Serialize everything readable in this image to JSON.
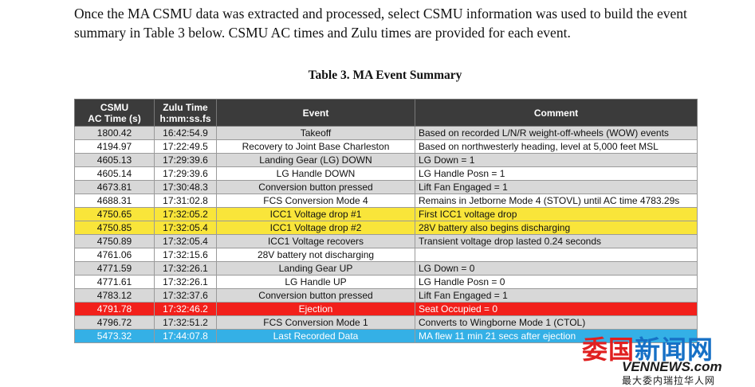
{
  "intro_text": "Once the MA CSMU data was extracted and processed, select CSMU information was used to build the event summary in Table 3 below. CSMU AC times and Zulu times are provided for each event.",
  "caption": "Table 3. MA Event Summary",
  "columns": {
    "c1_line1": "CSMU",
    "c1_line2": "AC Time (s)",
    "c2_line1": "Zulu Time",
    "c2_line2": "h:mm:ss.fs",
    "c3": "Event",
    "c4": "Comment"
  },
  "rows": [
    {
      "ac": "1800.42",
      "zulu": "16:42:54.9",
      "event": "Takeoff",
      "comment": "Based on recorded L/N/R weight-off-wheels (WOW) events",
      "style": "gray"
    },
    {
      "ac": "4194.97",
      "zulu": "17:22:49.5",
      "event": "Recovery to Joint Base Charleston",
      "comment": "Based on northwesterly heading, level at 5,000 feet MSL",
      "style": "white"
    },
    {
      "ac": "4605.13",
      "zulu": "17:29:39.6",
      "event": "Landing Gear (LG) DOWN",
      "comment": "LG Down = 1",
      "style": "gray"
    },
    {
      "ac": "4605.14",
      "zulu": "17:29:39.6",
      "event": "LG Handle DOWN",
      "comment": "LG Handle Posn = 1",
      "style": "white"
    },
    {
      "ac": "4673.81",
      "zulu": "17:30:48.3",
      "event": "Conversion button pressed",
      "comment": "Lift Fan Engaged = 1",
      "style": "gray"
    },
    {
      "ac": "4688.31",
      "zulu": "17:31:02.8",
      "event": "FCS Conversion Mode 4",
      "comment": "Remains in Jetborne Mode 4 (STOVL) until AC time 4783.29s",
      "style": "white"
    },
    {
      "ac": "4750.65",
      "zulu": "17:32:05.2",
      "event": "ICC1 Voltage drop #1",
      "comment": "First ICC1 voltage drop",
      "style": "yellow"
    },
    {
      "ac": "4750.85",
      "zulu": "17:32:05.4",
      "event": "ICC1 Voltage drop #2",
      "comment": "28V battery also begins discharging",
      "style": "yellow"
    },
    {
      "ac": "4750.89",
      "zulu": "17:32:05.4",
      "event": "ICC1 Voltage recovers",
      "comment": "Transient voltage drop lasted 0.24 seconds",
      "style": "gray"
    },
    {
      "ac": "4761.06",
      "zulu": "17:32:15.6",
      "event": "28V battery not discharging",
      "comment": "",
      "style": "white"
    },
    {
      "ac": "4771.59",
      "zulu": "17:32:26.1",
      "event": "Landing Gear UP",
      "comment": "LG Down = 0",
      "style": "gray"
    },
    {
      "ac": "4771.61",
      "zulu": "17:32:26.1",
      "event": "LG Handle UP",
      "comment": "LG Handle Posn = 0",
      "style": "white"
    },
    {
      "ac": "4783.12",
      "zulu": "17:32:37.6",
      "event": "Conversion button pressed",
      "comment": "Lift Fan Engaged = 1",
      "style": "gray"
    },
    {
      "ac": "4791.78",
      "zulu": "17:32:46.2",
      "event": "Ejection",
      "comment": "Seat Occupied = 0",
      "style": "red"
    },
    {
      "ac": "4796.72",
      "zulu": "17:32:51.2",
      "event": "FCS Conversion Mode 1",
      "comment": "Converts to Wingborne Mode 1 (CTOL)",
      "style": "gray"
    },
    {
      "ac": "5473.32",
      "zulu": "17:44:07.8",
      "event": "Last Recorded Data",
      "comment": "MA flew 11 min 21 secs after ejection",
      "style": "blue"
    }
  ],
  "watermark": {
    "cn_part1": "委国",
    "cn_part2": "新闻网",
    "en": "VENNEWS.com",
    "sub": "最大委内瑞拉华人网"
  }
}
